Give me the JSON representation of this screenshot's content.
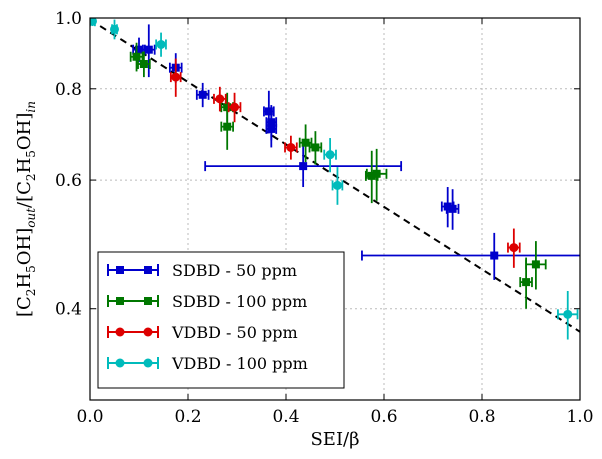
{
  "chart_data": {
    "type": "scatter",
    "xlabel": "SEI/β",
    "ylabel_parts": {
      "numer": "[C",
      "numer_sub1": "2",
      "numer_mid": "H",
      "numer_sub2": "5",
      "numer_end": "OH]",
      "numer_sub3": "out",
      "sep": "/",
      "denom": "[C",
      "denom_sub1": "2",
      "denom_mid": "H",
      "denom_sub2": "5",
      "denom_end": "OH]",
      "denom_sub3": "in"
    },
    "xlim": [
      0.0,
      1.0
    ],
    "ylim": [
      0.3,
      1.0
    ],
    "y_scale": "log",
    "x_ticks": [
      "0.0",
      "0.2",
      "0.4",
      "0.6",
      "0.8",
      "1.0"
    ],
    "x_tick_values": [
      0.0,
      0.2,
      0.4,
      0.6,
      0.8,
      1.0
    ],
    "y_ticks": [
      "0.4",
      "0.6",
      "0.8",
      "1.0"
    ],
    "y_tick_values": [
      0.4,
      0.6,
      0.8,
      1.0
    ],
    "grid": true,
    "legend_position": "lower-left",
    "fit_line": {
      "style": "dashed",
      "color": "#000000",
      "x": [
        0.0,
        1.0
      ],
      "y": [
        0.995,
        0.372
      ]
    },
    "series": [
      {
        "name": "SDBD - 50 ppm",
        "color": "#0000cc",
        "marker": "square",
        "points": [
          {
            "x": 0.1,
            "y": 0.905,
            "xerr": 0.012,
            "yerr": 0.035
          },
          {
            "x": 0.12,
            "y": 0.905,
            "xerr": 0.012,
            "yerr": 0.075
          },
          {
            "x": 0.175,
            "y": 0.855,
            "xerr": 0.012,
            "yerr": 0.04
          },
          {
            "x": 0.23,
            "y": 0.785,
            "xerr": 0.012,
            "yerr": 0.03
          },
          {
            "x": 0.365,
            "y": 0.745,
            "xerr": 0.01,
            "yerr": 0.05
          },
          {
            "x": 0.37,
            "y": 0.72,
            "xerr": 0.01,
            "yerr": 0.04
          },
          {
            "x": 0.37,
            "y": 0.705,
            "xerr": 0.01,
            "yerr": 0.04
          },
          {
            "x": 0.435,
            "y": 0.627,
            "xerr": 0.2,
            "yerr": 0.04
          },
          {
            "x": 0.73,
            "y": 0.552,
            "xerr": 0.012,
            "yerr": 0.035
          },
          {
            "x": 0.74,
            "y": 0.548,
            "xerr": 0.012,
            "yerr": 0.035
          },
          {
            "x": 0.825,
            "y": 0.473,
            "xerr": 0.27,
            "yerr": 0.035
          }
        ]
      },
      {
        "name": "SDBD - 100 ppm",
        "color": "#007700",
        "marker": "square",
        "points": [
          {
            "x": 0.095,
            "y": 0.885,
            "xerr": 0.012,
            "yerr": 0.04
          },
          {
            "x": 0.11,
            "y": 0.865,
            "xerr": 0.012,
            "yerr": 0.035
          },
          {
            "x": 0.28,
            "y": 0.755,
            "xerr": 0.012,
            "yerr": 0.035
          },
          {
            "x": 0.28,
            "y": 0.71,
            "xerr": 0.012,
            "yerr": 0.05
          },
          {
            "x": 0.44,
            "y": 0.675,
            "xerr": 0.012,
            "yerr": 0.04
          },
          {
            "x": 0.46,
            "y": 0.665,
            "xerr": 0.012,
            "yerr": 0.035
          },
          {
            "x": 0.575,
            "y": 0.608,
            "xerr": 0.012,
            "yerr": 0.05
          },
          {
            "x": 0.585,
            "y": 0.612,
            "xerr": 0.02,
            "yerr": 0.05
          },
          {
            "x": 0.89,
            "y": 0.435,
            "xerr": 0.012,
            "yerr": 0.035
          },
          {
            "x": 0.91,
            "y": 0.46,
            "xerr": 0.02,
            "yerr": 0.035
          }
        ]
      },
      {
        "name": "VDBD - 50 ppm",
        "color": "#dd0000",
        "marker": "circle",
        "points": [
          {
            "x": 0.175,
            "y": 0.83,
            "xerr": 0.01,
            "yerr": 0.05
          },
          {
            "x": 0.265,
            "y": 0.775,
            "xerr": 0.012,
            "yerr": 0.03
          },
          {
            "x": 0.295,
            "y": 0.755,
            "xerr": 0.012,
            "yerr": 0.035
          },
          {
            "x": 0.41,
            "y": 0.665,
            "xerr": 0.012,
            "yerr": 0.025
          },
          {
            "x": 0.865,
            "y": 0.485,
            "xerr": 0.012,
            "yerr": 0.03
          }
        ]
      },
      {
        "name": "VDBD - 100 ppm",
        "color": "#00bbbb",
        "marker": "circle",
        "points": [
          {
            "x": 0.005,
            "y": 0.99,
            "xerr": 0.005,
            "yerr": 0.015
          },
          {
            "x": 0.05,
            "y": 0.965,
            "xerr": 0.005,
            "yerr": 0.03
          },
          {
            "x": 0.145,
            "y": 0.92,
            "xerr": 0.01,
            "yerr": 0.035
          },
          {
            "x": 0.49,
            "y": 0.65,
            "xerr": 0.012,
            "yerr": 0.035
          },
          {
            "x": 0.505,
            "y": 0.59,
            "xerr": 0.01,
            "yerr": 0.035
          },
          {
            "x": 0.975,
            "y": 0.393,
            "xerr": 0.02,
            "yerr": 0.03
          }
        ]
      }
    ]
  }
}
